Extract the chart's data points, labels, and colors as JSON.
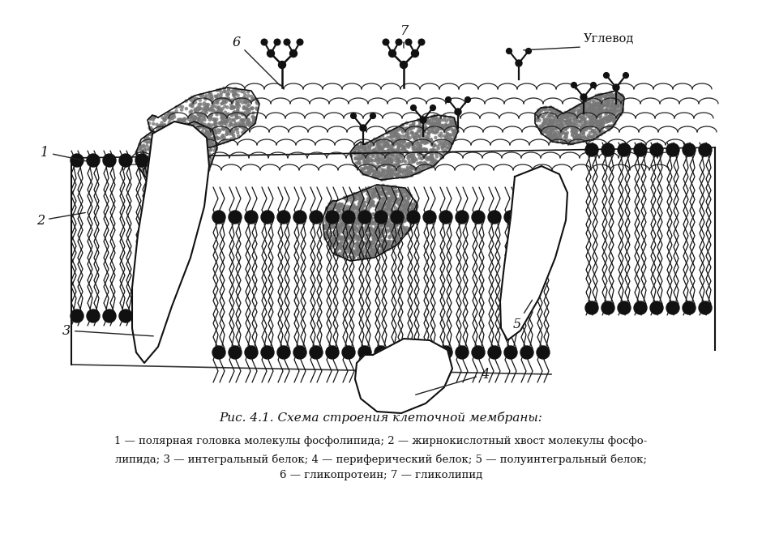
{
  "title": "Рис. 4.1. Схема строения клеточной мембраны:",
  "caption_line1": "1 — полярная головка молекулы фосфолипида; 2 — жирнокислотный хвост молекулы фосфо-",
  "caption_line2": "липида; 3 — интегральный белок; 4 — периферический белок; 5 — полуинтегральный белок;",
  "caption_line3": "6 — гликопротеин; 7 — гликолипид",
  "uglevod": "Углевод",
  "bg_color": "#ffffff",
  "lc": "#111111",
  "mc": "#555555"
}
